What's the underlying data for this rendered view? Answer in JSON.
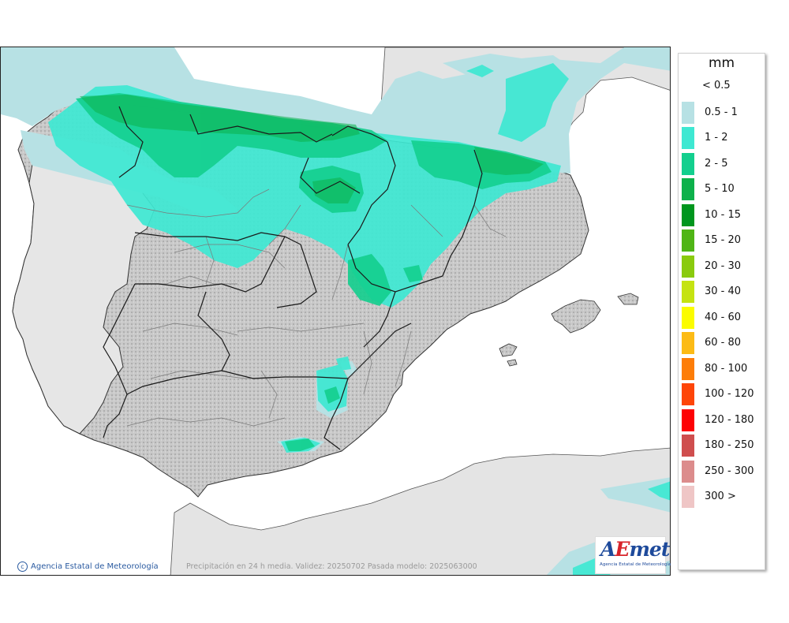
{
  "legend": {
    "unit": "mm",
    "below_threshold": "< 0.5",
    "classes": [
      {
        "label": "0.5 - 1",
        "color": "#b7e1e4"
      },
      {
        "label": "1 - 2",
        "color": "#3ee8d2"
      },
      {
        "label": "2 - 5",
        "color": "#13cf8e"
      },
      {
        "label": "5 - 10",
        "color": "#0db14b"
      },
      {
        "label": "10 - 15",
        "color": "#00961e"
      },
      {
        "label": "15 - 20",
        "color": "#4fb516"
      },
      {
        "label": "20 - 30",
        "color": "#8acb0e"
      },
      {
        "label": "30 - 40",
        "color": "#c5e311"
      },
      {
        "label": "40 - 60",
        "color": "#fbfc00"
      },
      {
        "label": "60 - 80",
        "color": "#fcbb16"
      },
      {
        "label": "80 - 100",
        "color": "#fd7d08"
      },
      {
        "label": "100 - 120",
        "color": "#fe4508"
      },
      {
        "label": "120 - 180",
        "color": "#fd0205"
      },
      {
        "label": "180 - 250",
        "color": "#cf4e4e"
      },
      {
        "label": "250 - 300",
        "color": "#dc8c8c"
      },
      {
        "label": "300 >",
        "color": "#efc6c6"
      }
    ]
  },
  "footer": {
    "credit": "Agencia Estatal de Meteorología",
    "caption": "Precipitación en 24 h media. Validez: 20250702 Pasada modelo: 2025063000"
  },
  "logo": {
    "mark_a": "A",
    "mark_e": "E",
    "mark_rest": "met",
    "subtitle": "Agencia Estatal de Meteorología"
  }
}
